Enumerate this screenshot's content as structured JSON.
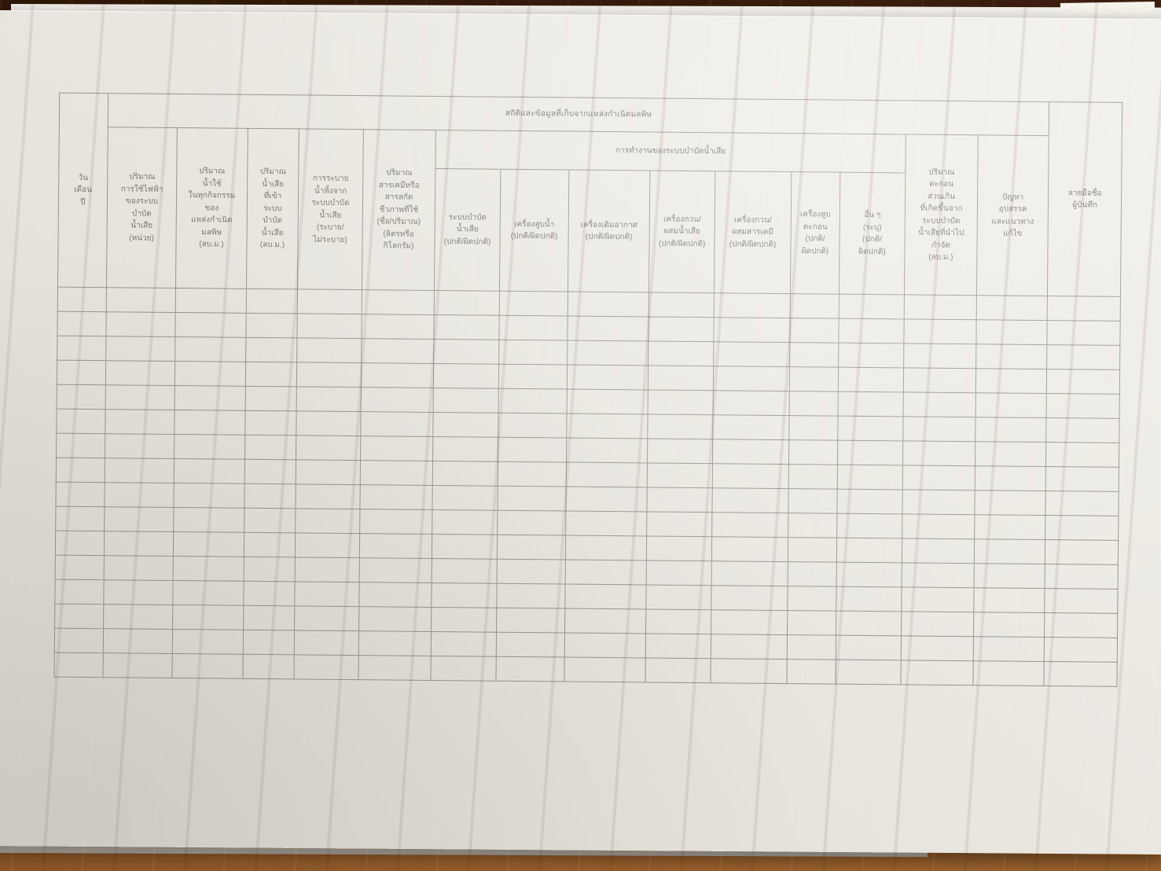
{
  "photo": {
    "description": "blank Thai wastewater-treatment daily record form photographed on a wooden desk with a stack of papers",
    "colors": {
      "wood_dark": "#2e1708",
      "wood_light": "#9d6630",
      "paper": "#e9e7e0",
      "grid_line": "#97958c",
      "text": "#76746d"
    }
  },
  "table": {
    "column_count": 16,
    "empty_row_count": 16,
    "title": "สถิติและข้อมูลที่เก็บจากแหล่งกำเนิดมลพิษ",
    "col_date": "วัน\nเดือน\nปี",
    "col_electricity": "ปริมาณ\nการใช้ไฟฟ้า\nของระบบ\nบำบัด\nน้ำเสีย\n(หน่วย)",
    "col_water_used": "ปริมาณ\nน้ำใช้\nในทุกกิจกรรม\nของ\nแหล่งกำเนิด\nมลพิษ\n(ลบ.ม.)",
    "col_wastewater_in": "ปริมาณ\nน้ำเสีย\nที่เข้า\nระบบ\nบำบัด\nน้ำเสีย\n(ลบ.ม.)",
    "col_discharge": "การระบาย\nน้ำทิ้งจาก\nระบบบำบัด\nน้ำเสีย\n(ระบาย/\nไม่ระบาย)",
    "col_chemicals": "ปริมาณ\nสารเคมีหรือ\nสารสกัด\nชีวภาพที่ใช้\n(ชื่อ/ปริมาณ)\n(ลิตรหรือ\nกิโลกรัม)",
    "operation_group_label": "การทำงานของระบบบำบัดน้ำเสีย",
    "sub_system": "ระบบบำบัด\nน้ำเสีย\n(ปกติ/ผิดปกติ)",
    "sub_water_pump": "เครื่องสูบน้ำ\n(ปกติ/ผิดปกติ)",
    "sub_aerator": "เครื่องเติมอากาศ\n(ปกติ/ผิดปกติ)",
    "sub_wastewater_mixer": "เครื่องกวน/\nผสมน้ำเสีย\n(ปกติ/ผิดปกติ)",
    "sub_chemical_mixer": "เครื่องกวน/\nผสมสารเคมี\n(ปกติ/ผิดปกติ)",
    "sub_sludge_pump": "เครื่องสูบ\nตะกอน\n(ปกติ/\nผิดปกติ)",
    "sub_other": "อื่น ๆ\n(ระบุ)\n(ปกติ/\nผิดปกติ)",
    "col_sludge": "ปริมาณ\nตะกอน\nส่วนเกิน\nที่เกิดขึ้นจาก\nระบบบำบัด\nน้ำเสียที่นำไป\nกำจัด\n(ลบ.ม.)",
    "col_problems": "ปัญหา\nอุปสรรค\nและแนวทาง\nแก้ไข",
    "col_signature": "ลายมือชื่อ\nผู้บันทึก"
  }
}
